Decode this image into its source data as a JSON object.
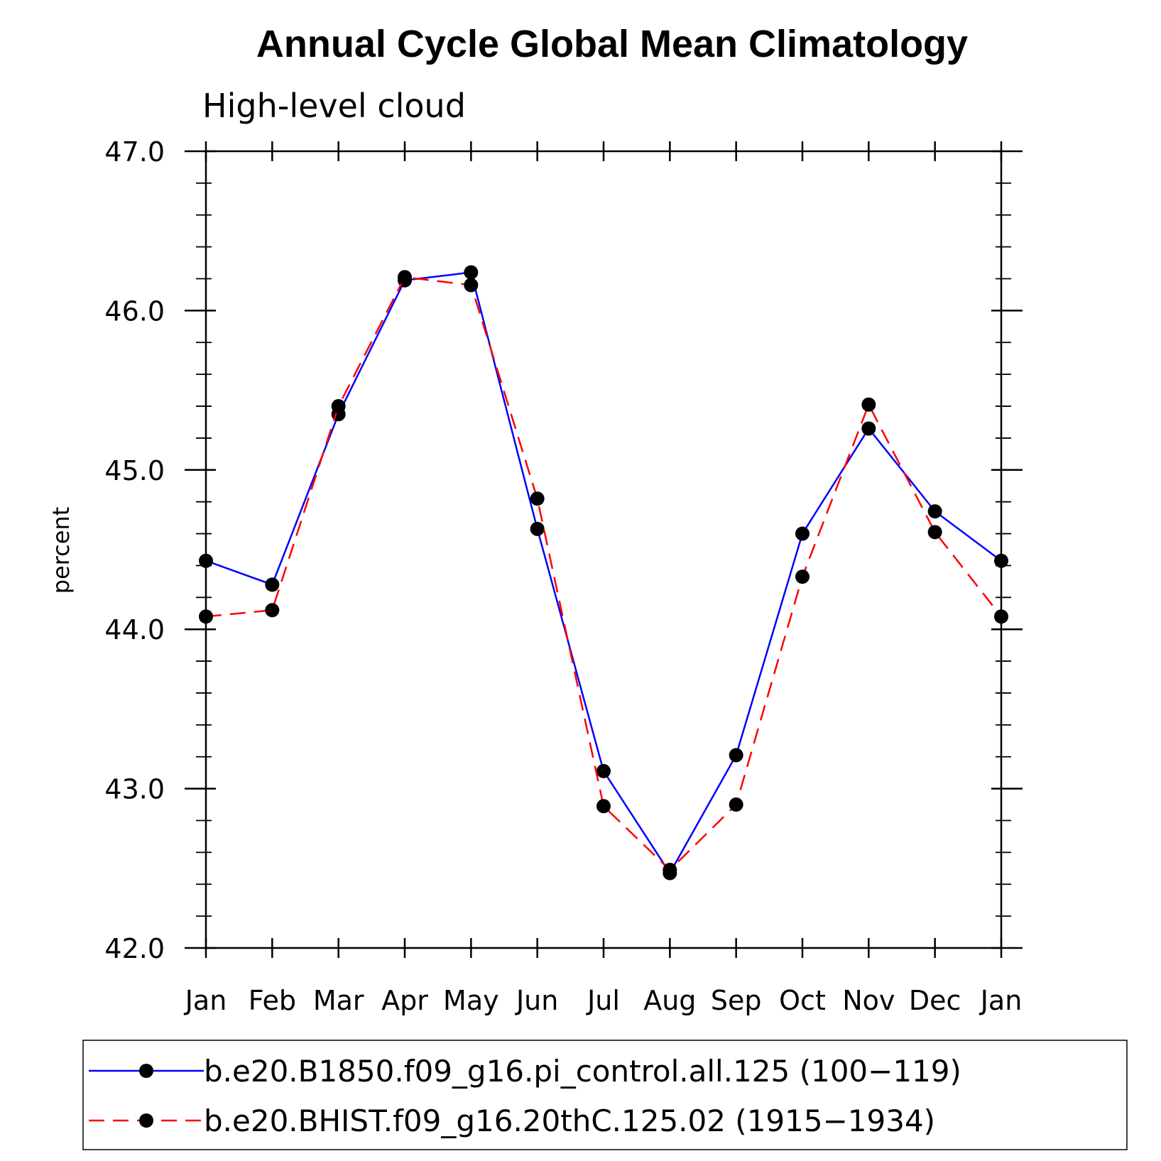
{
  "chart_data": {
    "type": "line",
    "title": "Annual Cycle Global Mean Climatology",
    "subtitle": "High-level cloud",
    "ylabel": "percent",
    "xlabel": "",
    "categories": [
      "Jan",
      "Feb",
      "Mar",
      "Apr",
      "May",
      "Jun",
      "Jul",
      "Aug",
      "Sep",
      "Oct",
      "Nov",
      "Dec",
      "Jan"
    ],
    "ylim": [
      42.0,
      47.0
    ],
    "yticks": [
      "42.0",
      "43.0",
      "44.0",
      "45.0",
      "46.0",
      "47.0"
    ],
    "grid": false,
    "legend_position": "bottom",
    "series": [
      {
        "name": "b.e20.B1850.f09_g16.pi_control.all.125 (100−119)",
        "color": "#0000ff",
        "style": "solid",
        "marker": "filled-circle",
        "values": [
          44.43,
          44.28,
          45.35,
          46.19,
          46.24,
          44.63,
          43.11,
          42.47,
          43.21,
          44.6,
          45.26,
          44.74,
          44.43
        ]
      },
      {
        "name": "b.e20.BHIST.f09_g16.20thC.125.02 (1915−1934)",
        "color": "#ff0000",
        "style": "dashed",
        "marker": "filled-circle",
        "values": [
          44.08,
          44.12,
          45.4,
          46.21,
          46.16,
          44.82,
          42.89,
          42.49,
          42.9,
          44.33,
          45.41,
          44.61,
          44.08
        ]
      }
    ]
  }
}
